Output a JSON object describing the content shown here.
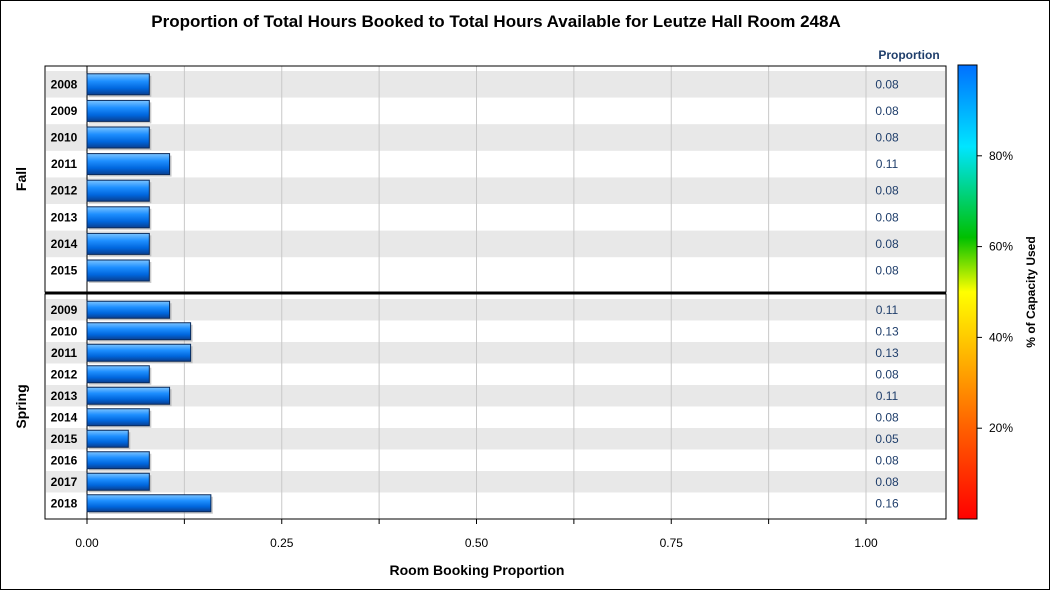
{
  "chart_data": {
    "type": "bar",
    "orientation": "horizontal",
    "title": "Proportion of Total Hours Booked to Total Hours Available for Leutze Hall Room 248A",
    "xlabel": "Room Booking Proportion",
    "xlim": [
      0,
      1.1
    ],
    "xticks": [
      "0.00",
      "0.25",
      "0.50",
      "0.75",
      "1.00"
    ],
    "value_column_header": "Proportion",
    "colorbar": {
      "label": "% of Capacity Used",
      "ticks": [
        "20%",
        "40%",
        "60%",
        "80%"
      ],
      "colors": [
        "#ff0000",
        "#ff8000",
        "#ffff00",
        "#00c000",
        "#00e5ff",
        "#0080ff"
      ]
    },
    "panels": [
      {
        "name": "Fall",
        "categories": [
          "2008",
          "2009",
          "2010",
          "2011",
          "2012",
          "2013",
          "2014",
          "2015"
        ],
        "values": [
          0.08,
          0.08,
          0.08,
          0.106,
          0.08,
          0.08,
          0.08,
          0.08
        ],
        "labels": [
          "0.08",
          "0.08",
          "0.08",
          "0.11",
          "0.08",
          "0.08",
          "0.08",
          "0.08"
        ]
      },
      {
        "name": "Spring",
        "categories": [
          "2009",
          "2010",
          "2011",
          "2012",
          "2013",
          "2014",
          "2015",
          "2016",
          "2017",
          "2018"
        ],
        "values": [
          0.106,
          0.133,
          0.133,
          0.08,
          0.106,
          0.08,
          0.053,
          0.08,
          0.08,
          0.159
        ],
        "labels": [
          "0.11",
          "0.13",
          "0.13",
          "0.08",
          "0.11",
          "0.08",
          "0.05",
          "0.08",
          "0.08",
          "0.16"
        ]
      }
    ],
    "grid": true
  }
}
